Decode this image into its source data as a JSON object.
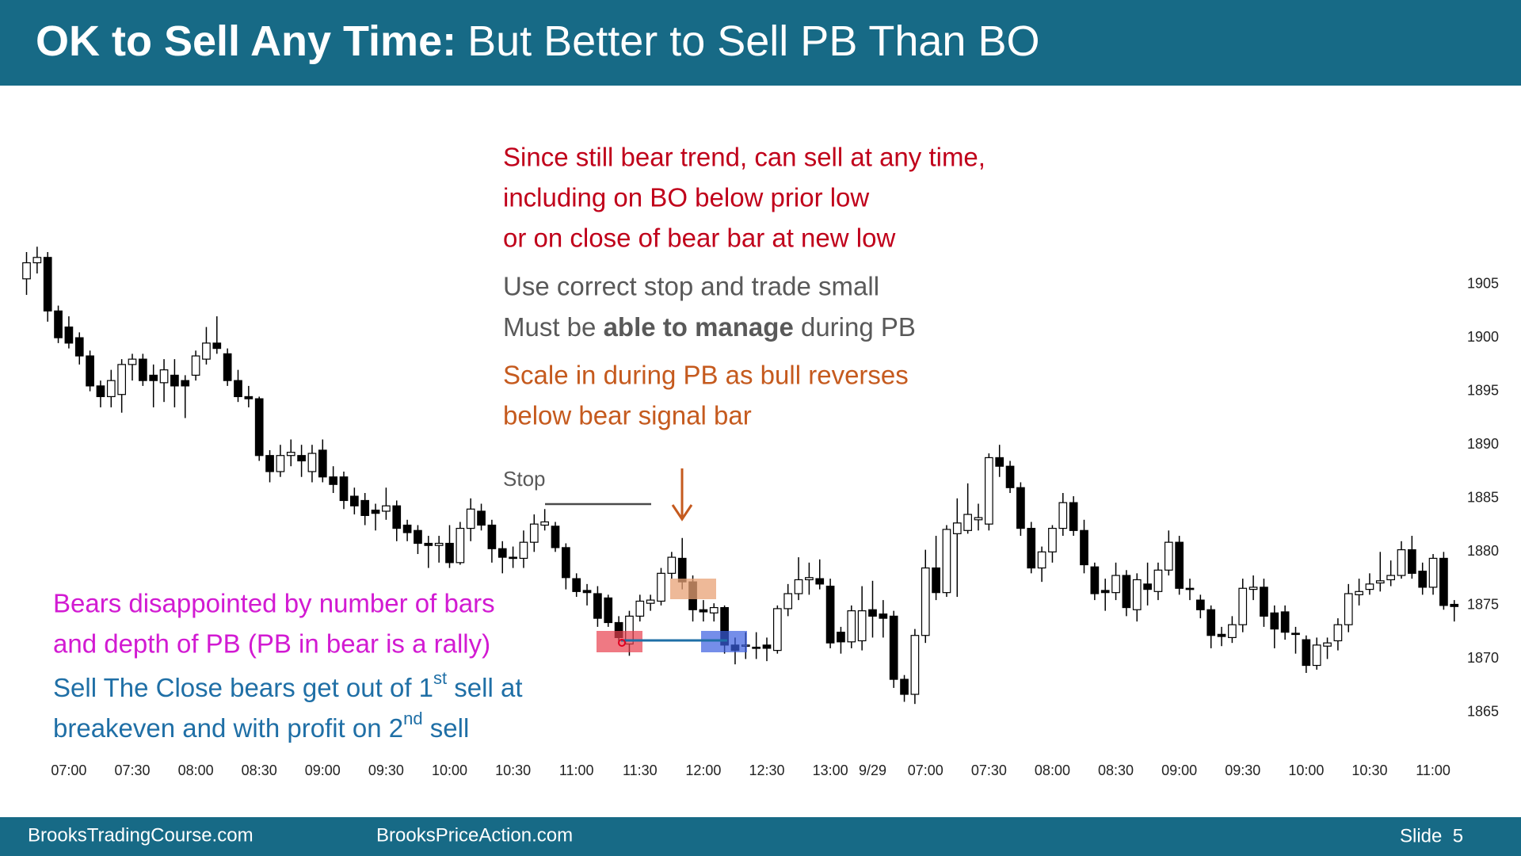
{
  "header": {
    "title_bold": "OK to Sell Any Time:",
    "title_rest": "But Better to Sell PB Than BO"
  },
  "notes": {
    "red": [
      "Since still bear trend, can sell at any time,",
      "including on BO below prior low",
      "or on close of bear bar at new low"
    ],
    "gray_1": "Use correct stop and trade small",
    "gray_2": [
      "Must be ",
      "able to manage",
      " during PB"
    ],
    "orange": [
      "Scale in during PB as bull reverses",
      "below bear signal bar"
    ],
    "stop": "Stop",
    "magenta": [
      "Bears disappointed by number of bars",
      "and depth of PB (PB in bear is a rally)"
    ],
    "blue": [
      [
        "Sell The Close bears get out of 1",
        "st",
        " sell at"
      ],
      [
        "breakeven and with profit on 2",
        "nd",
        " sell"
      ]
    ]
  },
  "footer": {
    "left": "BrooksTradingCourse.com",
    "middle": "BrooksPriceAction.com",
    "slide": "Slide  5"
  },
  "chart_data": {
    "type": "candlestick",
    "categories": [
      null,
      null,
      null,
      null,
      "07:00",
      null,
      null,
      null,
      null,
      null,
      "07:30",
      null,
      null,
      null,
      null,
      null,
      "08:00",
      null,
      null,
      null,
      null,
      null,
      "08:30",
      null,
      null,
      null,
      null,
      null,
      "09:00",
      null,
      null,
      null,
      null,
      null,
      "09:30",
      null,
      null,
      null,
      null,
      null,
      "10:00",
      null,
      null,
      null,
      null,
      null,
      "10:30",
      null,
      null,
      null,
      null,
      null,
      "11:00",
      null,
      null,
      null,
      null,
      null,
      "11:30",
      null,
      null,
      null,
      null,
      null,
      "12:00",
      null,
      null,
      null,
      null,
      null,
      "12:30",
      null,
      null,
      null,
      null,
      null,
      "13:00",
      null,
      null,
      null,
      "9/29",
      null,
      null,
      null,
      null,
      "07:00",
      null,
      null,
      null,
      null,
      null,
      "07:30",
      null,
      null,
      null,
      null,
      null,
      "08:00",
      null,
      null,
      null,
      null,
      null,
      "08:30",
      null,
      null,
      null,
      null,
      null,
      "09:00",
      null,
      null,
      null,
      null,
      null,
      "09:30",
      null,
      null,
      null,
      null,
      null,
      "10:00",
      null,
      null,
      null,
      null,
      null,
      "10:30",
      null,
      null,
      null,
      null,
      null,
      "11:00",
      null,
      null
    ],
    "open": [
      1905.5,
      1907,
      1907.5,
      1902.5,
      1901,
      1900,
      1898.3,
      1895.5,
      1894.5,
      1894.7,
      1897.5,
      1898,
      1896.5,
      1895.8,
      1896.5,
      1896,
      1896.5,
      1898,
      1899.5,
      1898.5,
      1896,
      1894.5,
      1894.3,
      1889,
      1887.5,
      1889,
      1889,
      1887.5,
      1889.5,
      1887,
      1887,
      1885.2,
      1884.8,
      1883.9,
      1883.8,
      1884.3,
      1882.5,
      1882,
      1880.8,
      1880.6,
      1880.8,
      1879,
      1882.2,
      1883.8,
      1882.5,
      1880.3,
      1879.5,
      1879.4,
      1880.9,
      1882.5,
      1882.4,
      1880.4,
      1877.5,
      1876.4,
      1876.1,
      1875.7,
      1873.4,
      1871.4,
      1874,
      1875.2,
      1875.4,
      1878,
      1879.4,
      1877.2,
      1874.6,
      1874.3,
      1874.8,
      1871.3,
      1871.2,
      1871.1,
      1871.3,
      1870.8,
      1874.7,
      1876.1,
      1877.4,
      1877.5,
      1876.8,
      1872.5,
      1871.6,
      1871.7,
      1874.6,
      1874.2,
      1874,
      1868.1,
      1866.7,
      1872.2,
      1878.5,
      1876.2,
      1881.7,
      1882,
      1883,
      1882.6,
      1888.8,
      1888,
      1886,
      1882.2,
      1878.5,
      1880,
      1882.2,
      1884.6,
      1882,
      1878.6,
      1876.4,
      1876.2,
      1877.8,
      1874.6,
      1877,
      1876.3,
      1878.3,
      1880.9,
      1876.6,
      1875.5,
      1874.6,
      1872.3,
      1872,
      1873.2,
      1876.5,
      1876.7,
      1874.3,
      1874.4,
      1872.4,
      1871.8,
      1869.4,
      1871.2,
      1871.7,
      1873.2,
      1876,
      1876.5,
      1877.1,
      1877.4,
      1877.8,
      1880.2,
      1878.2,
      1876.7,
      1879.4,
      1875.1
    ],
    "high": [
      1908,
      1908.5,
      1908,
      1903,
      1902,
      1900.5,
      1898.8,
      1896,
      1897,
      1898,
      1898.5,
      1898.5,
      1897.5,
      1898,
      1898,
      1896.5,
      1898.8,
      1901,
      1902,
      1899,
      1897,
      1895.5,
      1894.5,
      1889.5,
      1890,
      1890.5,
      1890,
      1890,
      1890.5,
      1888,
      1887.5,
      1886,
      1885.5,
      1884.5,
      1886,
      1884.8,
      1883,
      1882.5,
      1881.5,
      1881.5,
      1882.5,
      1882.8,
      1885,
      1884.5,
      1883,
      1881,
      1880.5,
      1882,
      1883.5,
      1884,
      1882.8,
      1880.8,
      1878,
      1877,
      1876.8,
      1876,
      1874,
      1874.5,
      1876,
      1876,
      1878.5,
      1880,
      1881.3,
      1877.8,
      1875.5,
      1875.2,
      1875,
      1872,
      1872.5,
      1872.5,
      1872,
      1875,
      1877,
      1879.5,
      1879,
      1879.3,
      1877.5,
      1873,
      1875,
      1876.8,
      1877.3,
      1875.5,
      1874.5,
      1868.5,
      1872.8,
      1880.2,
      1881.5,
      1882.5,
      1885,
      1886.4,
      1884.5,
      1889.2,
      1890,
      1888.5,
      1886.5,
      1882.8,
      1880.5,
      1882.5,
      1885.5,
      1885.2,
      1883,
      1879,
      1877.5,
      1879,
      1878.3,
      1878,
      1879,
      1879,
      1882,
      1881.5,
      1877.5,
      1876,
      1875,
      1873,
      1874,
      1877.5,
      1877.8,
      1877.5,
      1875,
      1875,
      1873,
      1872.2,
      1872,
      1872,
      1873.8,
      1877,
      1877.5,
      1878,
      1880,
      1879.2,
      1881,
      1881.5,
      1879,
      1879.8,
      1880,
      1875.5
    ],
    "low": [
      1904,
      1906,
      1901.5,
      1899.5,
      1899,
      1897.5,
      1895,
      1893.5,
      1893.5,
      1893,
      1896,
      1895.5,
      1893.5,
      1894,
      1893.5,
      1892.5,
      1896,
      1897.5,
      1898.5,
      1895.5,
      1894,
      1893.5,
      1888.5,
      1886.5,
      1887,
      1888,
      1887,
      1886.5,
      1886.5,
      1885.5,
      1884,
      1883.5,
      1882.5,
      1882,
      1883,
      1881,
      1881,
      1879.8,
      1878.5,
      1879,
      1878.5,
      1878.8,
      1881,
      1882,
      1879,
      1878,
      1878.5,
      1878.5,
      1880,
      1882,
      1880,
      1876.5,
      1875.8,
      1875,
      1873,
      1873,
      1871.5,
      1870.3,
      1873.5,
      1874.5,
      1875,
      1877.5,
      1876.5,
      1873.5,
      1873.5,
      1873.5,
      1870.5,
      1869.5,
      1870,
      1870,
      1869.8,
      1870.5,
      1874,
      1875.5,
      1876,
      1876.5,
      1871,
      1870.5,
      1871,
      1870.8,
      1872,
      1872,
      1867.3,
      1866,
      1865.8,
      1871.5,
      1875.5,
      1875.8,
      1875.8,
      1881.7,
      1882,
      1882,
      1887,
      1885.5,
      1881.5,
      1878,
      1877.2,
      1879,
      1881.5,
      1881.5,
      1878,
      1875.5,
      1874.5,
      1875.5,
      1874,
      1873.5,
      1875,
      1875.5,
      1877.8,
      1876,
      1875.5,
      1873.8,
      1871,
      1871.2,
      1871.5,
      1872.5,
      1875.5,
      1873,
      1871,
      1871.8,
      1870.5,
      1868.7,
      1869,
      1870,
      1870.8,
      1872.5,
      1875,
      1876,
      1876.3,
      1876.8,
      1877.5,
      1877.5,
      1876,
      1876,
      1874.6,
      1873.5
    ],
    "close": [
      1907,
      1907.5,
      1902.5,
      1900,
      1899.5,
      1898.3,
      1895.5,
      1894.5,
      1896,
      1897.5,
      1898,
      1896,
      1896,
      1897,
      1895.5,
      1895.5,
      1898.3,
      1899.5,
      1899,
      1896,
      1894.5,
      1894.3,
      1889,
      1887.5,
      1889,
      1889.3,
      1888.5,
      1889.2,
      1887,
      1886.3,
      1884.8,
      1884.3,
      1883.4,
      1883.6,
      1884.3,
      1882.2,
      1881.8,
      1880.8,
      1880.6,
      1880.8,
      1879,
      1882.2,
      1884,
      1882.5,
      1880.3,
      1879.5,
      1879.4,
      1880.9,
      1882.6,
      1882.8,
      1880.4,
      1877.6,
      1876.3,
      1876.2,
      1873.8,
      1873.4,
      1872,
      1874,
      1875.4,
      1875.5,
      1878,
      1879.5,
      1877.2,
      1874.6,
      1874.4,
      1874.8,
      1871.3,
      1870.8,
      1871.3,
      1871,
      1871,
      1874.7,
      1876.1,
      1877.4,
      1877.6,
      1877,
      1871.5,
      1871.6,
      1874.5,
      1874.5,
      1874,
      1873.8,
      1868.1,
      1866.7,
      1872.2,
      1878.5,
      1876.2,
      1882.1,
      1882.7,
      1883.5,
      1883.2,
      1888.8,
      1888,
      1886,
      1882.2,
      1878.5,
      1880,
      1882.2,
      1884.6,
      1882,
      1878.8,
      1876.1,
      1876.2,
      1877.8,
      1874.8,
      1877.4,
      1876.5,
      1878.3,
      1880.9,
      1876.6,
      1876.5,
      1874.6,
      1872.2,
      1872.1,
      1873.2,
      1876.6,
      1876.7,
      1874,
      1872.8,
      1872.5,
      1872.3,
      1869.4,
      1871.3,
      1871.5,
      1873.2,
      1876.1,
      1876.3,
      1877,
      1877.3,
      1877.8,
      1880.2,
      1878,
      1876.7,
      1879.4,
      1875,
      1874.9
    ],
    "ylim": [
      1863,
      1910
    ],
    "yticks": [
      1865,
      1870,
      1875,
      1880,
      1885,
      1890,
      1895,
      1900,
      1905
    ],
    "up_color": "#ffffff",
    "down_color": "#000000"
  }
}
